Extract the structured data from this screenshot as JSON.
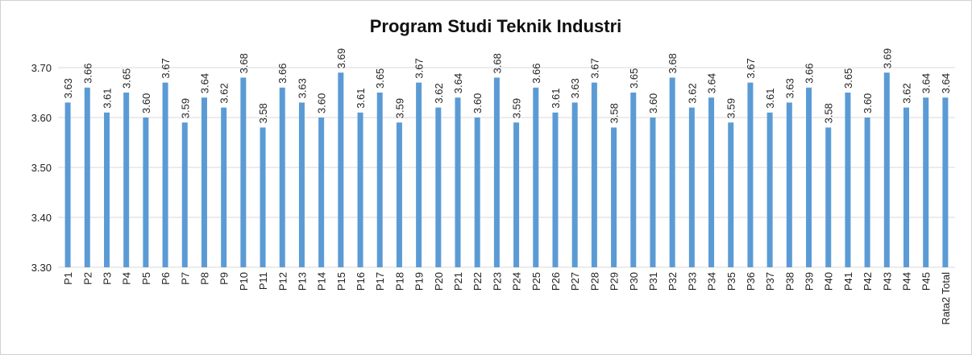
{
  "chart_data": {
    "type": "bar",
    "title": "Program Studi Teknik Industri",
    "categories": [
      "P1",
      "P2",
      "P3",
      "P4",
      "P5",
      "P6",
      "P7",
      "P8",
      "P9",
      "P10",
      "P11",
      "P12",
      "P13",
      "P14",
      "P15",
      "P16",
      "P17",
      "P18",
      "P19",
      "P20",
      "P21",
      "P22",
      "P23",
      "P24",
      "P25",
      "P26",
      "P27",
      "P28",
      "P29",
      "P30",
      "P31",
      "P32",
      "P33",
      "P34",
      "P35",
      "P36",
      "P37",
      "P38",
      "P39",
      "P40",
      "P41",
      "P42",
      "P43",
      "P44",
      "P45",
      "Rata2 Total"
    ],
    "values": [
      3.63,
      3.66,
      3.61,
      3.65,
      3.6,
      3.67,
      3.59,
      3.64,
      3.62,
      3.68,
      3.58,
      3.66,
      3.63,
      3.6,
      3.69,
      3.61,
      3.65,
      3.59,
      3.67,
      3.62,
      3.64,
      3.6,
      3.68,
      3.59,
      3.66,
      3.61,
      3.63,
      3.67,
      3.58,
      3.65,
      3.6,
      3.68,
      3.62,
      3.64,
      3.59,
      3.67,
      3.61,
      3.63,
      3.66,
      3.58,
      3.65,
      3.6,
      3.69,
      3.62,
      3.64,
      3.64
    ],
    "value_labels": [
      "3.63",
      "3.66",
      "3.61",
      "3.65",
      "3.60",
      "3.67",
      "3.59",
      "3.64",
      "3.62",
      "3.68",
      "3.58",
      "3.66",
      "3.63",
      "3.60",
      "3.69",
      "3.61",
      "3.65",
      "3.59",
      "3.67",
      "3.62",
      "3.64",
      "3.60",
      "3.68",
      "3.59",
      "3.66",
      "3.61",
      "3.63",
      "3.67",
      "3.58",
      "3.65",
      "3.60",
      "3.68",
      "3.62",
      "3.64",
      "3.59",
      "3.67",
      "3.61",
      "3.63",
      "3.66",
      "3.58",
      "3.65",
      "3.60",
      "3.69",
      "3.62",
      "3.64",
      "3.64"
    ],
    "color": "#5b9bd5",
    "ylim": [
      3.3,
      3.7
    ],
    "yticks": [
      {
        "value": 3.3,
        "label": "3.30"
      },
      {
        "value": 3.4,
        "label": "3.40"
      },
      {
        "value": 3.5,
        "label": "3.50"
      },
      {
        "value": 3.6,
        "label": "3.60"
      },
      {
        "value": 3.7,
        "label": "3.70"
      }
    ],
    "grid": true
  }
}
